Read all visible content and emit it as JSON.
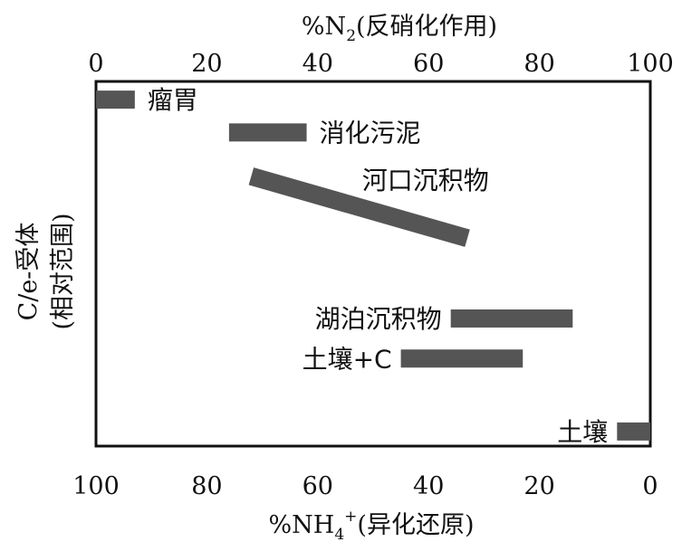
{
  "chart_data": {
    "type": "bar",
    "top_axis": {
      "label_prefix": "%N",
      "label_sub": "2",
      "label_suffix": "(反硝化作用)",
      "ticks": [
        "0",
        "20",
        "40",
        "60",
        "80",
        "100"
      ],
      "tick_values": [
        0,
        20,
        40,
        60,
        80,
        100
      ],
      "range": [
        0,
        100
      ]
    },
    "bottom_axis": {
      "label_prefix": "%NH",
      "label_sub": "4",
      "label_sup": "+",
      "label_suffix": "(异化还原)",
      "ticks": [
        "100",
        "80",
        "60",
        "40",
        "20",
        "0"
      ],
      "tick_values": [
        100,
        80,
        60,
        40,
        20,
        0
      ],
      "range": [
        100,
        0
      ]
    },
    "y_axis": {
      "label_line1": "C/e-受体",
      "label_line2": "(相对范围)"
    },
    "color": "#555555",
    "series": [
      {
        "name": "瘤胃",
        "n2_range": [
          0,
          7
        ],
        "y": 0.95,
        "y_end": 0.95
      },
      {
        "name": "消化污泥",
        "n2_range": [
          24,
          38
        ],
        "y": 0.86,
        "y_end": 0.86
      },
      {
        "name": "河口沉积物",
        "n2_range": [
          28,
          67
        ],
        "y": 0.74,
        "y_end": 0.57
      },
      {
        "name": "湖泊沉积物",
        "n2_range": [
          64,
          86
        ],
        "y": 0.35,
        "y_end": 0.35
      },
      {
        "name": "土壤+C",
        "n2_range": [
          55,
          77
        ],
        "y": 0.24,
        "y_end": 0.24
      },
      {
        "name": "土壤",
        "n2_range": [
          94,
          100
        ],
        "y": 0.04,
        "y_end": 0.04
      }
    ]
  }
}
